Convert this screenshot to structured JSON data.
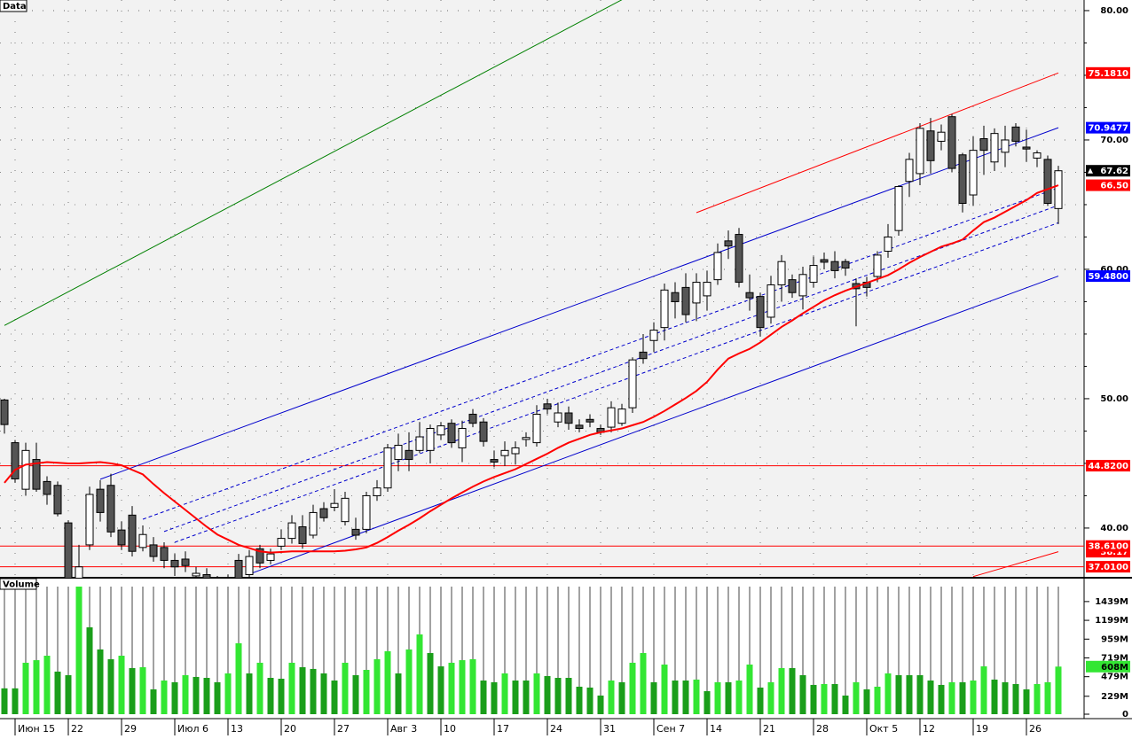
{
  "chart_data": {
    "type": "candlestick",
    "categories": [
      null,
      "Июн 15",
      null,
      null,
      null,
      null,
      "22",
      null,
      null,
      null,
      null,
      "29",
      null,
      null,
      null,
      null,
      "Июл 6",
      null,
      null,
      null,
      null,
      "13",
      null,
      null,
      null,
      null,
      "20",
      null,
      null,
      null,
      null,
      "27",
      null,
      null,
      null,
      null,
      "Авг 3",
      null,
      null,
      null,
      null,
      "10",
      null,
      null,
      null,
      null,
      "17",
      null,
      null,
      null,
      null,
      "24",
      null,
      null,
      null,
      null,
      "31",
      null,
      null,
      null,
      null,
      "Сен 7",
      null,
      null,
      null,
      null,
      "14",
      null,
      null,
      null,
      null,
      "21",
      null,
      null,
      null,
      null,
      "28",
      null,
      null,
      null,
      null,
      "Окт 5",
      null,
      null,
      null,
      null,
      "12",
      null,
      null,
      null,
      null,
      "19",
      null,
      null,
      null,
      null,
      "26",
      null,
      null,
      null
    ],
    "ylim": [
      36.16,
      80.82
    ],
    "yticks": [
      {
        "value": 40,
        "label": "40.00"
      },
      {
        "value": 50,
        "label": "50.00"
      },
      {
        "value": 60,
        "label": "60.00"
      },
      {
        "value": 70,
        "label": "70.00"
      },
      {
        "value": 80,
        "label": "80.00"
      }
    ],
    "grid": true,
    "series": [
      {
        "name": "Data",
        "up_color": "#ffffff",
        "down_color": "#555555",
        "open": [
          49.9,
          46.6,
          43.0,
          45.3,
          43.6,
          43.3,
          40.4,
          35.8,
          38.7,
          43.0,
          43.3,
          39.85,
          41.0,
          38.5,
          38.7,
          38.5,
          37.5,
          37.6,
          36.3,
          36.4,
          35.5,
          35.3,
          37.5,
          36.4,
          38.4,
          37.5,
          38.6,
          39.2,
          40.1,
          39.45,
          41.5,
          41.6,
          40.5,
          39.9,
          39.9,
          42.5,
          43.1,
          45.3,
          46.0,
          46.0,
          46.0,
          47.2,
          48.1,
          46.2,
          48.8,
          48.2,
          45.3,
          45.6,
          45.75,
          46.85,
          46.6,
          49.6,
          48.2,
          48.9,
          47.95,
          48.4,
          47.7,
          47.8,
          48.1,
          49.3,
          53.6,
          54.5,
          55.5,
          58.2,
          58.6,
          57.4,
          57.95,
          59.2,
          62.2,
          62.7,
          58.2,
          57.9,
          56.3,
          58.8,
          59.2,
          57.95,
          59.0,
          60.75,
          60.6,
          60.6,
          58.9,
          59.0,
          59.45,
          61.4,
          63.0,
          66.8,
          67.4,
          70.7,
          69.9,
          71.8,
          68.85,
          65.75,
          70.1,
          68.3,
          69.05,
          71.0,
          69.45,
          68.6,
          68.5,
          64.7
        ],
        "high": [
          50.0,
          46.8,
          46.6,
          46.6,
          44.0,
          43.6,
          40.6,
          38.7,
          43.2,
          43.7,
          44.2,
          40.5,
          41.7,
          40.2,
          39.3,
          38.9,
          38.0,
          38.2,
          37.0,
          36.9,
          36.3,
          36.4,
          38.0,
          38.3,
          38.7,
          38.4,
          39.9,
          41.0,
          41.0,
          41.8,
          42.0,
          43.0,
          42.8,
          40.8,
          42.8,
          43.7,
          46.5,
          47.3,
          47.4,
          48.2,
          48.0,
          48.2,
          48.4,
          48.3,
          49.2,
          48.5,
          46.0,
          46.7,
          46.7,
          47.4,
          49.5,
          50.0,
          49.7,
          49.4,
          48.4,
          48.8,
          48.0,
          49.8,
          49.6,
          53.2,
          55.0,
          55.9,
          58.9,
          59.0,
          59.7,
          59.7,
          59.9,
          62.0,
          63.0,
          63.2,
          59.6,
          58.2,
          59.5,
          61.1,
          59.6,
          60.2,
          61.0,
          61.3,
          61.4,
          60.8,
          59.3,
          59.4,
          61.4,
          63.5,
          66.5,
          69.0,
          71.3,
          71.7,
          71.2,
          72.0,
          69.0,
          70.3,
          71.1,
          70.9,
          71.1,
          71.3,
          70.8,
          69.2,
          68.8,
          68.0
        ],
        "low": [
          47.3,
          43.5,
          42.5,
          42.8,
          41.8,
          40.9,
          35.0,
          35.3,
          38.3,
          40.5,
          39.3,
          38.3,
          37.8,
          38.2,
          37.4,
          36.9,
          36.3,
          36.6,
          35.5,
          35.6,
          35.0,
          35.0,
          35.5,
          36.2,
          36.9,
          37.2,
          38.3,
          38.8,
          38.4,
          39.2,
          40.5,
          41.3,
          40.2,
          39.1,
          39.6,
          42.1,
          42.8,
          44.4,
          44.4,
          45.8,
          45.0,
          46.8,
          46.2,
          45.1,
          47.8,
          46.3,
          44.7,
          44.8,
          44.9,
          46.3,
          46.3,
          48.8,
          47.8,
          47.6,
          47.4,
          47.8,
          47.2,
          47.4,
          47.9,
          48.9,
          52.7,
          53.6,
          54.5,
          56.2,
          55.9,
          56.0,
          56.8,
          58.8,
          60.8,
          58.6,
          56.8,
          54.8,
          55.8,
          57.5,
          57.8,
          56.9,
          58.6,
          60.0,
          59.3,
          59.5,
          55.6,
          57.9,
          59.0,
          60.9,
          62.6,
          65.6,
          66.5,
          67.4,
          69.2,
          67.5,
          64.4,
          64.9,
          67.3,
          67.6,
          67.9,
          69.5,
          68.3,
          67.9,
          64.9,
          63.5
        ],
        "close": [
          48.0,
          43.8,
          46.0,
          43.0,
          42.6,
          41.1,
          35.5,
          37.0,
          42.6,
          41.2,
          39.7,
          38.7,
          38.2,
          39.5,
          37.8,
          37.5,
          37.0,
          37.1,
          36.5,
          36.1,
          35.9,
          36.0,
          36.0,
          37.8,
          37.3,
          38.0,
          39.2,
          40.4,
          38.8,
          41.2,
          40.8,
          41.9,
          42.3,
          39.45,
          42.5,
          43.1,
          46.2,
          46.4,
          45.3,
          47.05,
          47.7,
          47.9,
          46.6,
          47.7,
          48.1,
          46.7,
          45.1,
          46.0,
          46.2,
          47.0,
          48.8,
          49.2,
          48.9,
          48.1,
          47.7,
          48.2,
          47.4,
          49.3,
          49.2,
          53.0,
          53.1,
          55.3,
          58.4,
          57.5,
          56.5,
          59.0,
          59.0,
          61.3,
          61.8,
          59.0,
          57.8,
          55.5,
          58.8,
          60.6,
          58.2,
          59.6,
          60.3,
          60.55,
          59.9,
          60.1,
          58.5,
          58.6,
          61.1,
          62.5,
          66.4,
          68.5,
          70.9,
          68.4,
          70.6,
          67.8,
          65.1,
          69.2,
          69.2,
          70.5,
          70.0,
          69.9,
          69.3,
          69.0,
          65.1,
          67.62
        ]
      }
    ],
    "moving_average": {
      "color": "#ff0000",
      "values": [
        43.5,
        44.5,
        44.9,
        45.0,
        45.1,
        45.05,
        45.0,
        45.0,
        45.05,
        45.1,
        45.0,
        44.85,
        44.5,
        44.15,
        43.4,
        42.7,
        42.05,
        41.4,
        40.75,
        40.1,
        39.5,
        39.1,
        38.7,
        38.45,
        38.2,
        38.1,
        38.15,
        38.2,
        38.2,
        38.2,
        38.2,
        38.2,
        38.25,
        38.35,
        38.5,
        38.85,
        39.3,
        39.8,
        40.25,
        40.75,
        41.3,
        41.8,
        42.3,
        42.75,
        43.2,
        43.6,
        43.95,
        44.25,
        44.55,
        44.95,
        45.35,
        45.75,
        46.2,
        46.6,
        46.9,
        47.2,
        47.4,
        47.55,
        47.7,
        47.95,
        48.2,
        48.6,
        49.05,
        49.55,
        50.05,
        50.6,
        51.3,
        52.25,
        53.1,
        53.5,
        53.85,
        54.35,
        54.95,
        55.55,
        56.05,
        56.6,
        57.1,
        57.6,
        58.0,
        58.35,
        58.65,
        58.95,
        59.25,
        59.55,
        60.0,
        60.5,
        60.95,
        61.35,
        61.75,
        62.0,
        62.3,
        63.0,
        63.65,
        64.0,
        64.45,
        64.9,
        65.35,
        65.9,
        66.2,
        66.5
      ],
      "value_labels": [
        null,
        null,
        null,
        null,
        null,
        null,
        null,
        null,
        null,
        null,
        null,
        null,
        null,
        null,
        null,
        null,
        null,
        null,
        null,
        null,
        null,
        null,
        null,
        null,
        null,
        null,
        null,
        null,
        null,
        null,
        null,
        null,
        null,
        null,
        null,
        null,
        null,
        null,
        null,
        null,
        null,
        null,
        null,
        null,
        null,
        null,
        null,
        null,
        null,
        null,
        null,
        null,
        null,
        null,
        null,
        null,
        null,
        null,
        null,
        null,
        null,
        null,
        null,
        null,
        null,
        null,
        null,
        null,
        null,
        null,
        null,
        null,
        null,
        null,
        null,
        null,
        null,
        null,
        null,
        null,
        null,
        null,
        null,
        null,
        null,
        null,
        null,
        null,
        null,
        null,
        null,
        null,
        null,
        null,
        null,
        null,
        null,
        null,
        null,
        "66.50"
      ]
    },
    "lines": [
      {
        "color": "#008000",
        "dash": false,
        "from_index": 0,
        "from_value": 55.66,
        "to_index": 58,
        "to_value": 80.84
      },
      {
        "color": "#0000cc",
        "dash": false,
        "from_index": 9,
        "from_value": 43.77,
        "to_index": 99,
        "to_value": 70.9477,
        "to_label": "70.9477"
      },
      {
        "color": "#0000cc",
        "dash": false,
        "from_index": 23,
        "from_value": 36.44,
        "to_index": 99,
        "to_value": 59.48,
        "to_label": "59.4800"
      },
      {
        "color": "#0000cc",
        "dash": true,
        "from_index": 13,
        "from_value": 40.68,
        "to_index": 99,
        "to_value": 66.3
      },
      {
        "color": "#0000cc",
        "dash": true,
        "from_index": 15,
        "from_value": 39.73,
        "to_index": 99,
        "to_value": 64.95
      },
      {
        "color": "#0000cc",
        "dash": true,
        "from_index": 16,
        "from_value": 38.9,
        "to_index": 99,
        "to_value": 63.6
      },
      {
        "color": "#ff0000",
        "dash": false,
        "from_index": 65,
        "from_value": 64.38,
        "to_index": 99,
        "to_value": 75.181,
        "to_label": "75.1810"
      },
      {
        "color": "#ff0000",
        "dash": false,
        "from_index": 91,
        "from_value": 36.25,
        "to_index": 99,
        "to_value": 38.17,
        "tag": true
      }
    ],
    "hlines": [
      {
        "color": "#ff0000",
        "value": 44.82,
        "label": "44.8200"
      },
      {
        "color": "#ff0000",
        "value": 38.61,
        "label": "38.6100"
      },
      {
        "color": "#ff0000",
        "value": 37.01,
        "label": "37.0100"
      }
    ],
    "volume": {
      "name": "Volume",
      "rising_color": "#33e633",
      "falling_color": "#1a9e1a",
      "values": [
        330,
        330,
        657,
        690,
        747,
        544,
        498,
        1630,
        1110,
        827,
        702,
        747,
        589,
        600,
        317,
        430,
        408,
        498,
        476,
        464,
        408,
        521,
        906,
        521,
        657,
        464,
        453,
        657,
        600,
        578,
        521,
        430,
        657,
        498,
        566,
        702,
        804,
        521,
        827,
        1019,
        781,
        611,
        657,
        690,
        702,
        430,
        408,
        521,
        430,
        430,
        521,
        487,
        464,
        464,
        351,
        340,
        238,
        430,
        408,
        657,
        781,
        408,
        634,
        430,
        430,
        442,
        294,
        408,
        408,
        430,
        634,
        340,
        408,
        589,
        589,
        498,
        374,
        385,
        385,
        238,
        408,
        317,
        351,
        521,
        498,
        498,
        498,
        430,
        374,
        408,
        408,
        430,
        611,
        442,
        408,
        385,
        317,
        385,
        408,
        608
      ],
      "value_labels": [
        null,
        null,
        null,
        null,
        null,
        null,
        null,
        null,
        null,
        null,
        null,
        null,
        null,
        null,
        null,
        null,
        null,
        null,
        null,
        null,
        null,
        null,
        null,
        null,
        null,
        null,
        null,
        null,
        null,
        null,
        null,
        null,
        null,
        null,
        null,
        null,
        null,
        null,
        null,
        null,
        null,
        null,
        null,
        null,
        null,
        null,
        null,
        null,
        null,
        null,
        null,
        null,
        null,
        null,
        null,
        null,
        null,
        null,
        null,
        null,
        null,
        null,
        null,
        null,
        null,
        null,
        null,
        null,
        null,
        null,
        null,
        null,
        null,
        null,
        null,
        null,
        null,
        null,
        null,
        null,
        null,
        null,
        null,
        null,
        null,
        null,
        null,
        null,
        null,
        null,
        null,
        null,
        null,
        null,
        null,
        null,
        null,
        null,
        null,
        "608M"
      ],
      "ylim": [
        0,
        1630
      ],
      "yticks": [
        0,
        {
          "value": 229,
          "label": "229M"
        },
        {
          "value": 479,
          "label": "479M"
        },
        {
          "value": 719,
          "label": "719M"
        },
        {
          "value": 959,
          "label": "959M"
        },
        {
          "value": 1199,
          "label": "1199M"
        },
        {
          "value": 1439,
          "label": "1439M"
        }
      ]
    }
  }
}
